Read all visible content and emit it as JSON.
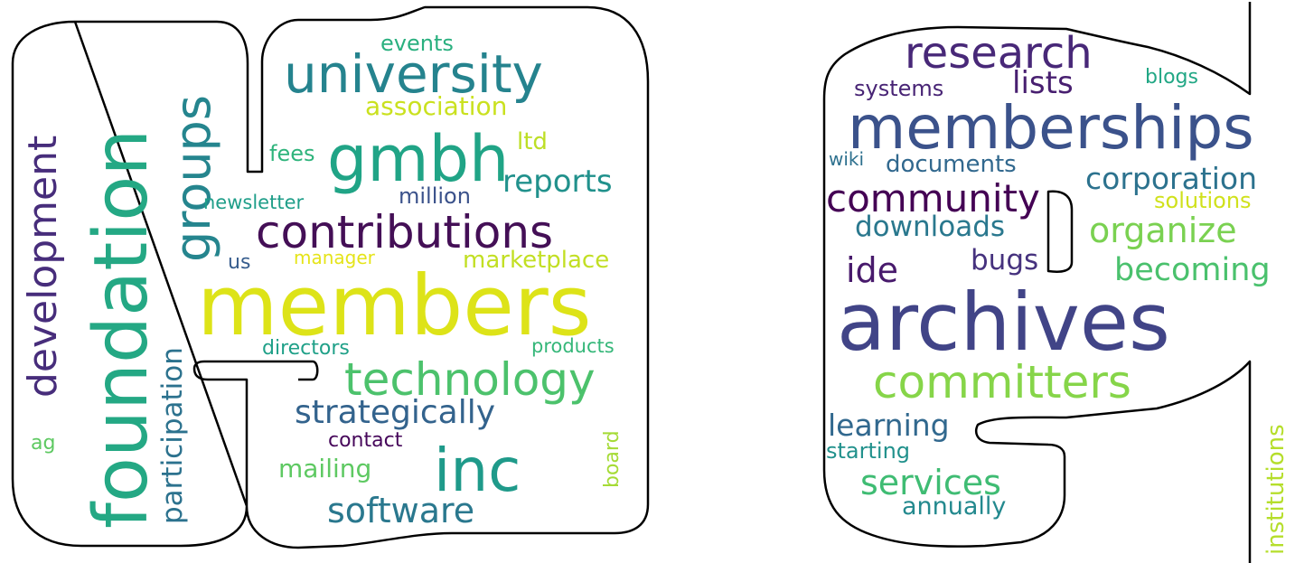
{
  "colors": {
    "background": "#ffffff",
    "outline": "#000000"
  },
  "words": [
    {
      "text": "members",
      "color": "#dde318"
    },
    {
      "text": "foundation",
      "color": "#24a884"
    },
    {
      "text": "contributions",
      "color": "#440f56"
    },
    {
      "text": "gmbh",
      "color": "#20a486"
    },
    {
      "text": "university",
      "color": "#25838e"
    },
    {
      "text": "inc",
      "color": "#1f9a8a"
    },
    {
      "text": "technology",
      "color": "#4cc26c"
    },
    {
      "text": "groups",
      "color": "#25858e"
    },
    {
      "text": "development",
      "color": "#472d7b"
    },
    {
      "text": "strategically",
      "color": "#33638d"
    },
    {
      "text": "software",
      "color": "#2a788e"
    },
    {
      "text": "participation",
      "color": "#2c728e"
    },
    {
      "text": "reports",
      "color": "#21918c"
    },
    {
      "text": "mailing",
      "color": "#5ec962"
    },
    {
      "text": "association",
      "color": "#cae11f"
    },
    {
      "text": "marketplace",
      "color": "#c2df23"
    },
    {
      "text": "events",
      "color": "#2ab07f"
    },
    {
      "text": "ltd",
      "color": "#bddf26"
    },
    {
      "text": "fees",
      "color": "#2fb47c"
    },
    {
      "text": "million",
      "color": "#3b528b"
    },
    {
      "text": "newsletter",
      "color": "#1f9e89"
    },
    {
      "text": "us",
      "color": "#365c8d"
    },
    {
      "text": "manager",
      "color": "#e5e419"
    },
    {
      "text": "directors",
      "color": "#1fa088"
    },
    {
      "text": "products",
      "color": "#35b779"
    },
    {
      "text": "contact",
      "color": "#46075a"
    },
    {
      "text": "board",
      "color": "#a5db36"
    },
    {
      "text": "ag",
      "color": "#5ec962"
    },
    {
      "text": "archives",
      "color": "#414487"
    },
    {
      "text": "memberships",
      "color": "#3b528b"
    },
    {
      "text": "committers",
      "color": "#86d549"
    },
    {
      "text": "research",
      "color": "#482878"
    },
    {
      "text": "community",
      "color": "#440154"
    },
    {
      "text": "corporation",
      "color": "#2c728e"
    },
    {
      "text": "organize",
      "color": "#7ad151"
    },
    {
      "text": "becoming",
      "color": "#4ac16d"
    },
    {
      "text": "services",
      "color": "#3fbc73"
    },
    {
      "text": "ide",
      "color": "#481a6c"
    },
    {
      "text": "downloads",
      "color": "#2a788e"
    },
    {
      "text": "documents",
      "color": "#31688e"
    },
    {
      "text": "learning",
      "color": "#31688e"
    },
    {
      "text": "lists",
      "color": "#481f70"
    },
    {
      "text": "bugs",
      "color": "#46327e"
    },
    {
      "text": "annually",
      "color": "#23898e"
    },
    {
      "text": "systems",
      "color": "#482475"
    },
    {
      "text": "starting",
      "color": "#21918c"
    },
    {
      "text": "solutions",
      "color": "#d0e11c"
    },
    {
      "text": "blogs",
      "color": "#22a785"
    },
    {
      "text": "wiki",
      "color": "#2d708e"
    },
    {
      "text": "institutions",
      "color": "#b5de2b"
    }
  ]
}
